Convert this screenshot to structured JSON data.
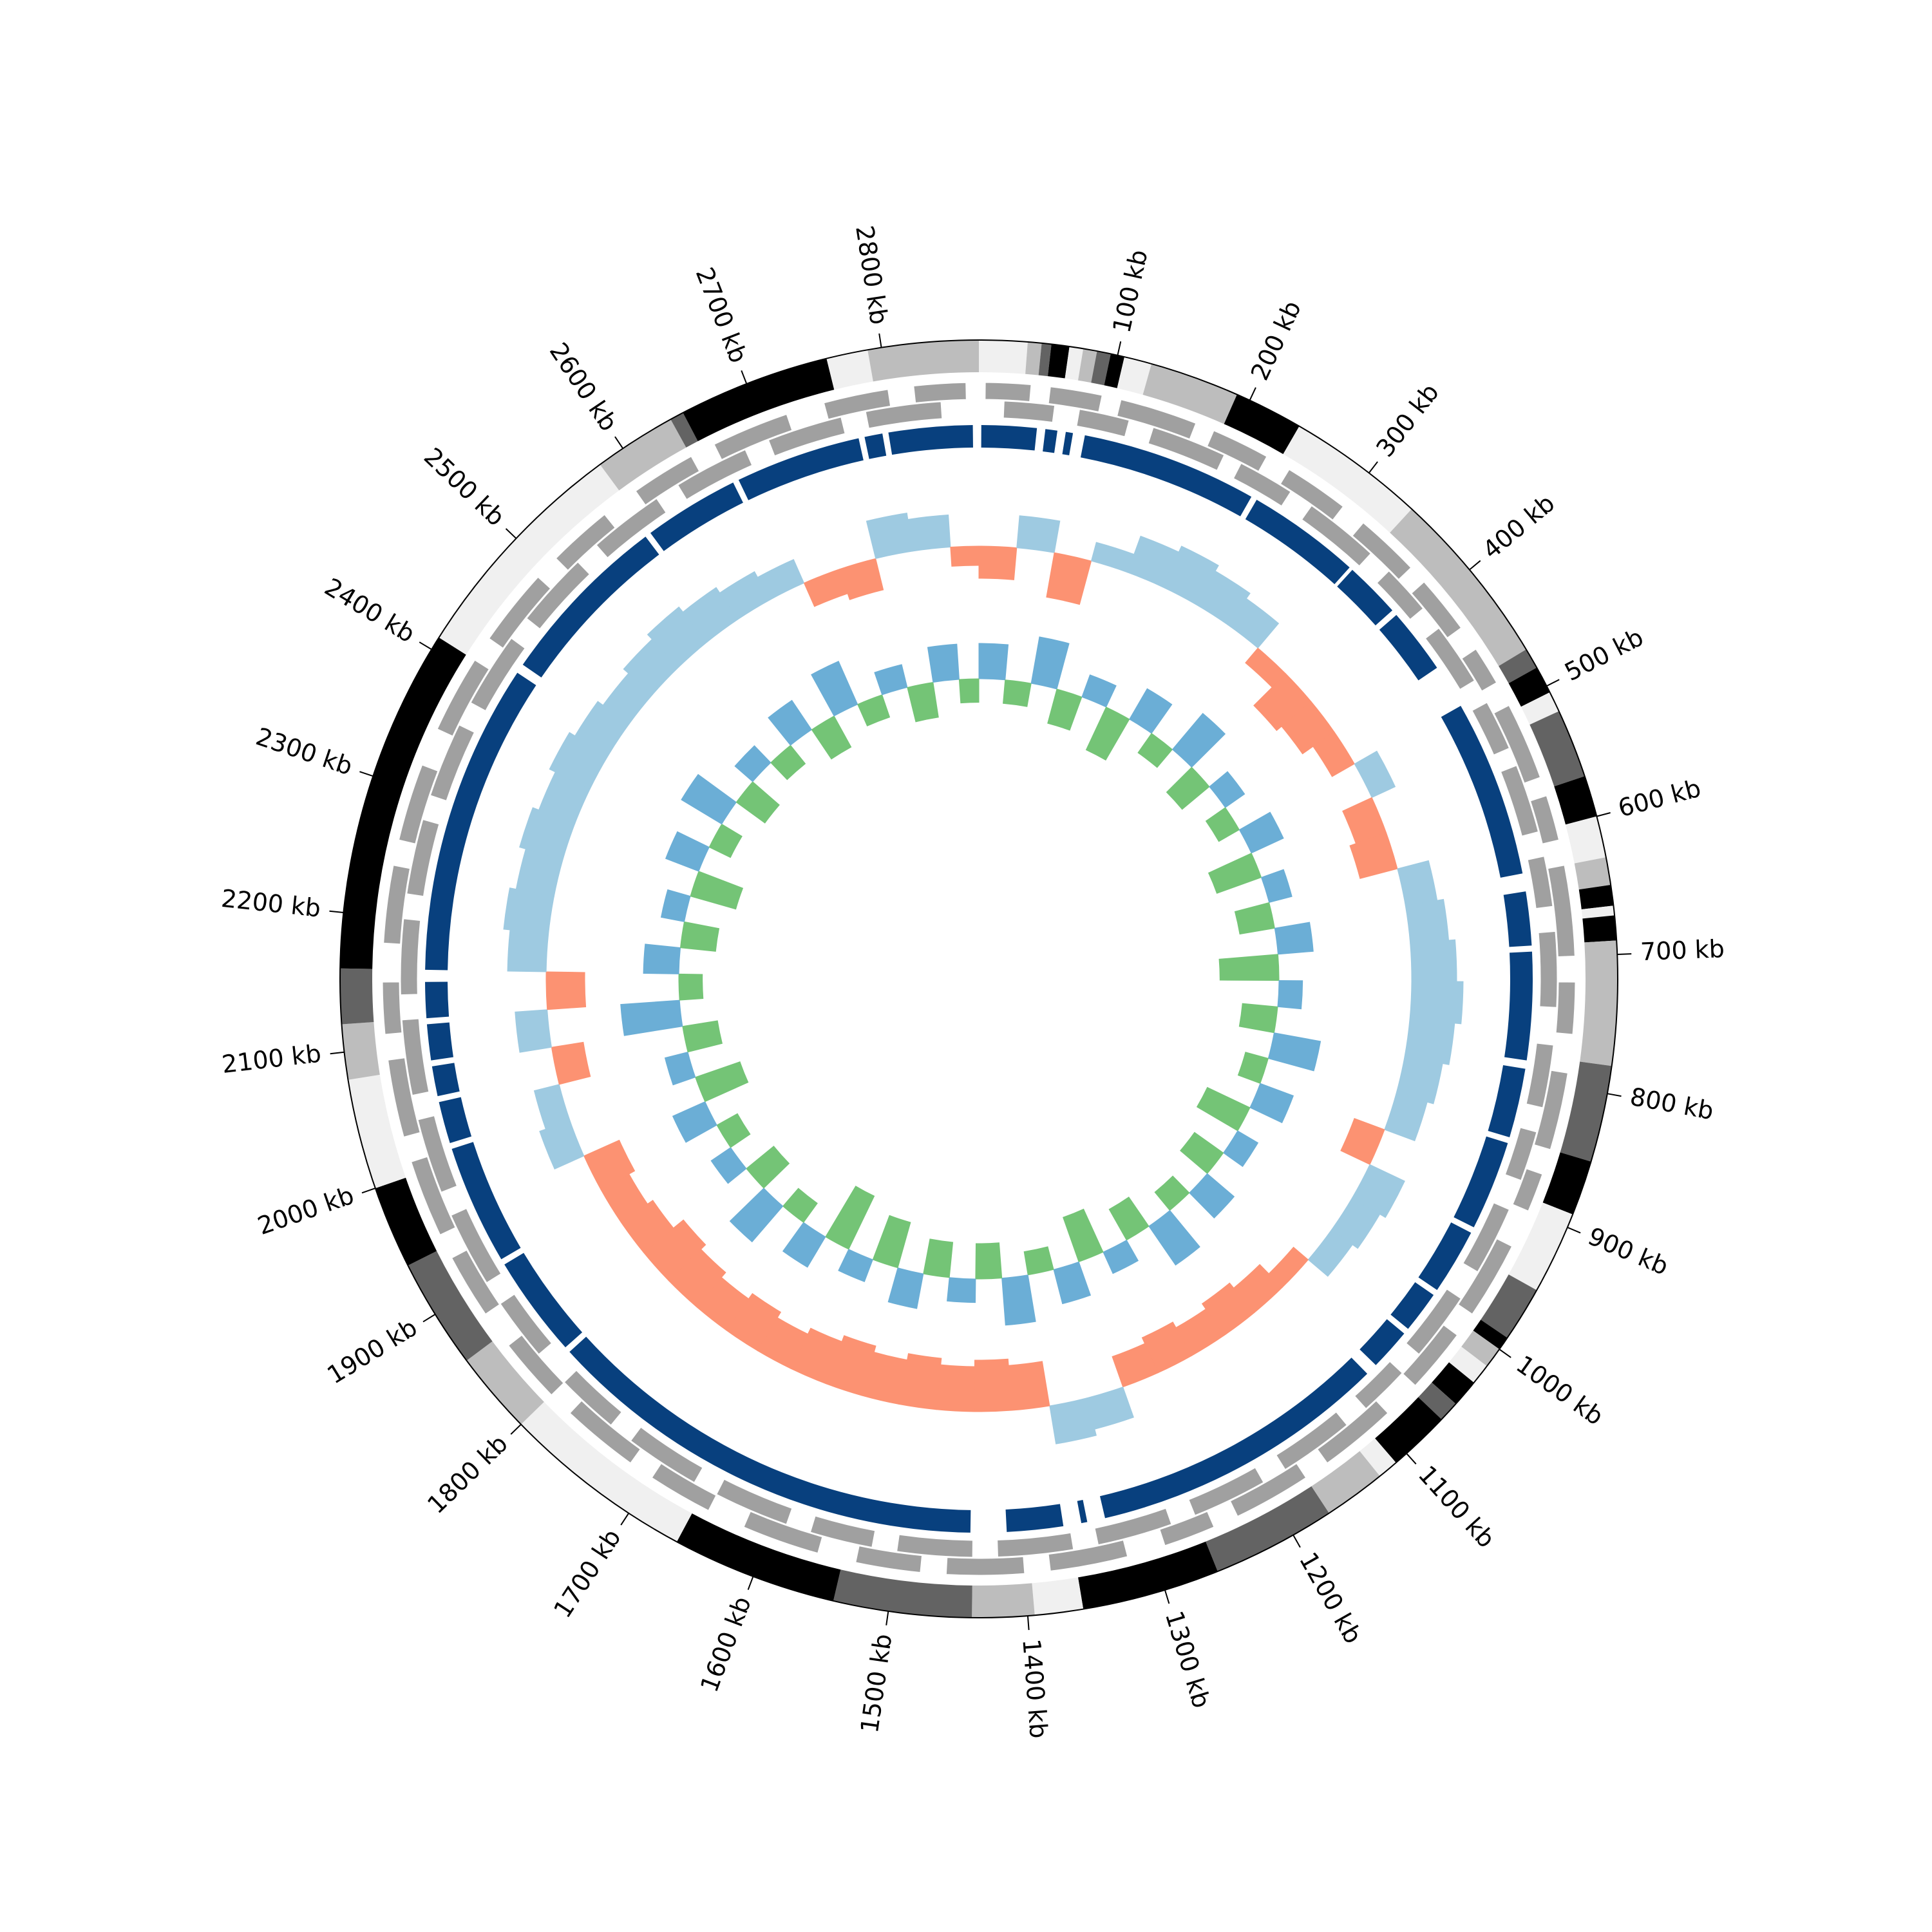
{
  "chart_data": {
    "type": "circos",
    "xlim": [
      0,
      2870
    ],
    "xticks": [
      {
        "value": 100,
        "label": "100 kb"
      },
      {
        "value": 200,
        "label": "200 kb"
      },
      {
        "value": 300,
        "label": "300 kb"
      },
      {
        "value": 400,
        "label": "400 kb"
      },
      {
        "value": 500,
        "label": "500 kb"
      },
      {
        "value": 600,
        "label": "600 kb"
      },
      {
        "value": 700,
        "label": "700 kb"
      },
      {
        "value": 800,
        "label": "800 kb"
      },
      {
        "value": 900,
        "label": "900 kb"
      },
      {
        "value": 1000,
        "label": "1000 kb"
      },
      {
        "value": 1100,
        "label": "1100 kb"
      },
      {
        "value": 1200,
        "label": "1200 kb"
      },
      {
        "value": 1300,
        "label": "1300 kb"
      },
      {
        "value": 1400,
        "label": "1400 kb"
      },
      {
        "value": 1500,
        "label": "1500 kb"
      },
      {
        "value": 1600,
        "label": "1600 kb"
      },
      {
        "value": 1700,
        "label": "1700 kb"
      },
      {
        "value": 1800,
        "label": "1800 kb"
      },
      {
        "value": 1900,
        "label": "1900 kb"
      },
      {
        "value": 2000,
        "label": "2000 kb"
      },
      {
        "value": 2100,
        "label": "2100 kb"
      },
      {
        "value": 2200,
        "label": "2200 kb"
      },
      {
        "value": 2300,
        "label": "2300 kb"
      },
      {
        "value": 2400,
        "label": "2400 kb"
      },
      {
        "value": 2500,
        "label": "2500 kb"
      },
      {
        "value": 2600,
        "label": "2600 kb"
      },
      {
        "value": 2700,
        "label": "2700 kb"
      },
      {
        "value": 2800,
        "label": "2800 kb"
      }
    ],
    "bands": {
      "starts": [
        0,
        35,
        45,
        52,
        65,
        75,
        85,
        95,
        105,
        125,
        190,
        240,
        340,
        470,
        485,
        505,
        520,
        570,
        600,
        630,
        650,
        665,
        672,
        690,
        780,
        850,
        890,
        950,
        990,
        1000,
        1015,
        1030,
        1050,
        1065,
        1110,
        1125,
        1170,
        1260,
        1360,
        1395,
        1440,
        1540,
        1660,
        1800,
        1860,
        1940,
        2000,
        2080,
        2120,
        2160,
        2410,
        2580,
        2640,
        2650,
        2760,
        2790
      ],
      "ends": [
        35,
        45,
        52,
        65,
        75,
        85,
        95,
        105,
        125,
        190,
        240,
        340,
        470,
        485,
        505,
        520,
        570,
        600,
        630,
        650,
        665,
        672,
        690,
        780,
        850,
        890,
        950,
        990,
        1000,
        1015,
        1030,
        1050,
        1065,
        1110,
        1125,
        1170,
        1260,
        1360,
        1395,
        1440,
        1540,
        1660,
        1800,
        1860,
        1940,
        2000,
        2080,
        2120,
        2160,
        2410,
        2580,
        2640,
        2650,
        2760,
        2790,
        2870
      ],
      "colors": [
        "#f0f0f0",
        "#bdbdbd",
        "#636363",
        "#000000",
        "#f0f0f0",
        "#bdbdbd",
        "#636363",
        "#000000",
        "#f0f0f0",
        "#bdbdbd",
        "#000000",
        "#f0f0f0",
        "#bdbdbd",
        "#636363",
        "#000000",
        "#f0f0f0",
        "#636363",
        "#000000",
        "#f0f0f0",
        "#bdbdbd",
        "#000000",
        "#f0f0f0",
        "#000000",
        "#bdbdbd",
        "#636363",
        "#000000",
        "#f0f0f0",
        "#636363",
        "#000000",
        "#bdbdbd",
        "#f0f0f0",
        "#000000",
        "#636363",
        "#000000",
        "#f0f0f0",
        "#bdbdbd",
        "#636363",
        "#000000",
        "#f0f0f0",
        "#bdbdbd",
        "#636363",
        "#000000",
        "#f0f0f0",
        "#bdbdbd",
        "#636363",
        "#000000",
        "#f0f0f0",
        "#bdbdbd",
        "#636363",
        "#000000",
        "#f0f0f0",
        "#bdbdbd",
        "#636363",
        "#000000",
        "#f0f0f0",
        "#bdbdbd"
      ]
    },
    "genes": {
      "color": "#a0a0a0",
      "forward": {
        "starts": [
          5,
          55,
          110,
          185,
          250,
          320,
          385,
          450,
          500,
          575,
          630,
          720,
          790,
          870,
          930,
          1010,
          1090,
          1170,
          1250,
          1320,
          1400,
          1480,
          1560,
          1650,
          1720,
          1800,
          1880,
          1950,
          2030,
          2110,
          2180,
          2260,
          2350,
          2430,
          2510,
          2590,
          2660,
          2750,
          2820
        ],
        "ends": [
          40,
          95,
          170,
          230,
          300,
          370,
          430,
          480,
          560,
          610,
          700,
          760,
          850,
          900,
          990,
          1060,
          1150,
          1230,
          1290,
          1380,
          1460,
          1530,
          1620,
          1700,
          1780,
          1850,
          1930,
          2010,
          2090,
          2150,
          2240,
          2320,
          2410,
          2490,
          2560,
          2640,
          2720,
          2800,
          2860
        ]
      },
      "reverse": {
        "starts": [
          20,
          80,
          140,
          215,
          280,
          360,
          420,
          490,
          545,
          620,
          680,
          770,
          840,
          905,
          985,
          1060,
          1120,
          1200,
          1280,
          1360,
          1440,
          1520,
          1590,
          1670,
          1750,
          1830,
          1900,
          1980,
          2060,
          2140,
          2220,
          2300,
          2380,
          2460,
          2540,
          2620,
          2700,
          2780
        ],
        "ends": [
          60,
          120,
          200,
          260,
          340,
          400,
          470,
          530,
          600,
          660,
          740,
          820,
          880,
          960,
          1040,
          1100,
          1180,
          1260,
          1340,
          1420,
          1500,
          1570,
          1650,
          1730,
          1800,
          1880,
          1960,
          2040,
          2120,
          2200,
          2280,
          2360,
          2440,
          2520,
          2600,
          2680,
          2760,
          2840
        ]
      }
    },
    "blocks": {
      "color": "#08407e",
      "starts": [
        2795,
        2,
        55,
        72,
        88,
        240,
        338,
        390,
        482,
        645,
        695,
        792,
        855,
        935,
        995,
        1035,
        1080,
        1345,
        1365,
        1442,
        1820,
        1910,
        2015,
        2055,
        2085,
        2120,
        2160,
        2428,
        2580,
        2665,
        2775
      ],
      "ends": [
        2865,
        48,
        65,
        78,
        235,
        335,
        385,
        445,
        630,
        690,
        785,
        850,
        930,
        990,
        1030,
        1070,
        1330,
        1350,
        1412,
        1815,
        1905,
        2010,
        2050,
        2080,
        2115,
        2150,
        2420,
        2575,
        2660,
        2770,
        2790
      ]
    },
    "x": [
      0,
      40,
      80,
      120,
      160,
      200,
      240,
      280,
      320,
      360,
      400,
      440,
      480,
      520,
      560,
      600,
      640,
      680,
      720,
      760,
      800,
      840,
      880,
      920,
      960,
      1000,
      1040,
      1080,
      1120,
      1160,
      1200,
      1240,
      1280,
      1320,
      1360,
      1400,
      1440,
      1480,
      1520,
      1560,
      1600,
      1640,
      1680,
      1720,
      1760,
      1800,
      1840,
      1880,
      1920,
      1960,
      2000,
      2040,
      2080,
      2120,
      2160,
      2200,
      2240,
      2280,
      2320,
      2360,
      2400,
      2440,
      2480,
      2520,
      2560,
      2600,
      2640,
      2680,
      2720,
      2760,
      2800,
      2840
    ],
    "gc_skew": {
      "ylim": [
        -0.1,
        0.1
      ],
      "positive_color": "#9ecae1",
      "negative_color": "#fc9272",
      "values": [
        -0.05,
        0.05,
        -0.07,
        0.03,
        0.06,
        0.07,
        0.06,
        0.05,
        -0.03,
        -0.07,
        -0.06,
        -0.04,
        0.04,
        -0.05,
        -0.06,
        0.05,
        0.06,
        0.07,
        0.08,
        0.07,
        0.06,
        0.05,
        -0.05,
        0.06,
        0.05,
        0.04,
        -0.03,
        -0.05,
        -0.06,
        -0.05,
        -0.06,
        -0.05,
        0.05,
        0.06,
        -0.07,
        -0.08,
        -0.07,
        -0.08,
        -0.07,
        -0.08,
        -0.07,
        -0.06,
        -0.07,
        -0.06,
        -0.07,
        -0.08,
        -0.06,
        -0.05,
        -0.06,
        0.05,
        0.04,
        -0.05,
        0.05,
        -0.06,
        0.06,
        0.07,
        0.06,
        0.07,
        0.06,
        0.07,
        0.06,
        0.05,
        0.06,
        0.07,
        0.06,
        0.05,
        0.04,
        -0.04,
        -0.05,
        0.06,
        0.05,
        -0.03
      ]
    },
    "gc_content": {
      "ylim": [
        -0.06,
        0.06
      ],
      "positive_color": "#6baed6",
      "negative_color": "#74c476",
      "values": [
        0.03,
        -0.02,
        0.04,
        -0.03,
        0.02,
        -0.04,
        0.03,
        -0.02,
        0.04,
        -0.03,
        0.02,
        -0.02,
        0.03,
        -0.04,
        0.02,
        -0.03,
        0.03,
        -0.05,
        0.02,
        -0.03,
        0.04,
        -0.02,
        0.03,
        -0.04,
        0.02,
        -0.03,
        0.03,
        -0.02,
        0.04,
        -0.03,
        0.02,
        -0.04,
        0.03,
        -0.02,
        0.04,
        -0.03,
        0.02,
        -0.03,
        0.03,
        -0.04,
        0.02,
        -0.05,
        0.03,
        -0.02,
        0.04,
        -0.03,
        0.02,
        -0.02,
        0.03,
        -0.04,
        0.02,
        -0.03,
        0.05,
        -0.02,
        0.03,
        -0.03,
        0.02,
        -0.04,
        0.03,
        -0.02,
        0.04,
        -0.03,
        0.02,
        -0.02,
        0.03,
        -0.03,
        0.04,
        -0.02,
        0.02,
        -0.03,
        0.03,
        -0.02
      ]
    }
  }
}
